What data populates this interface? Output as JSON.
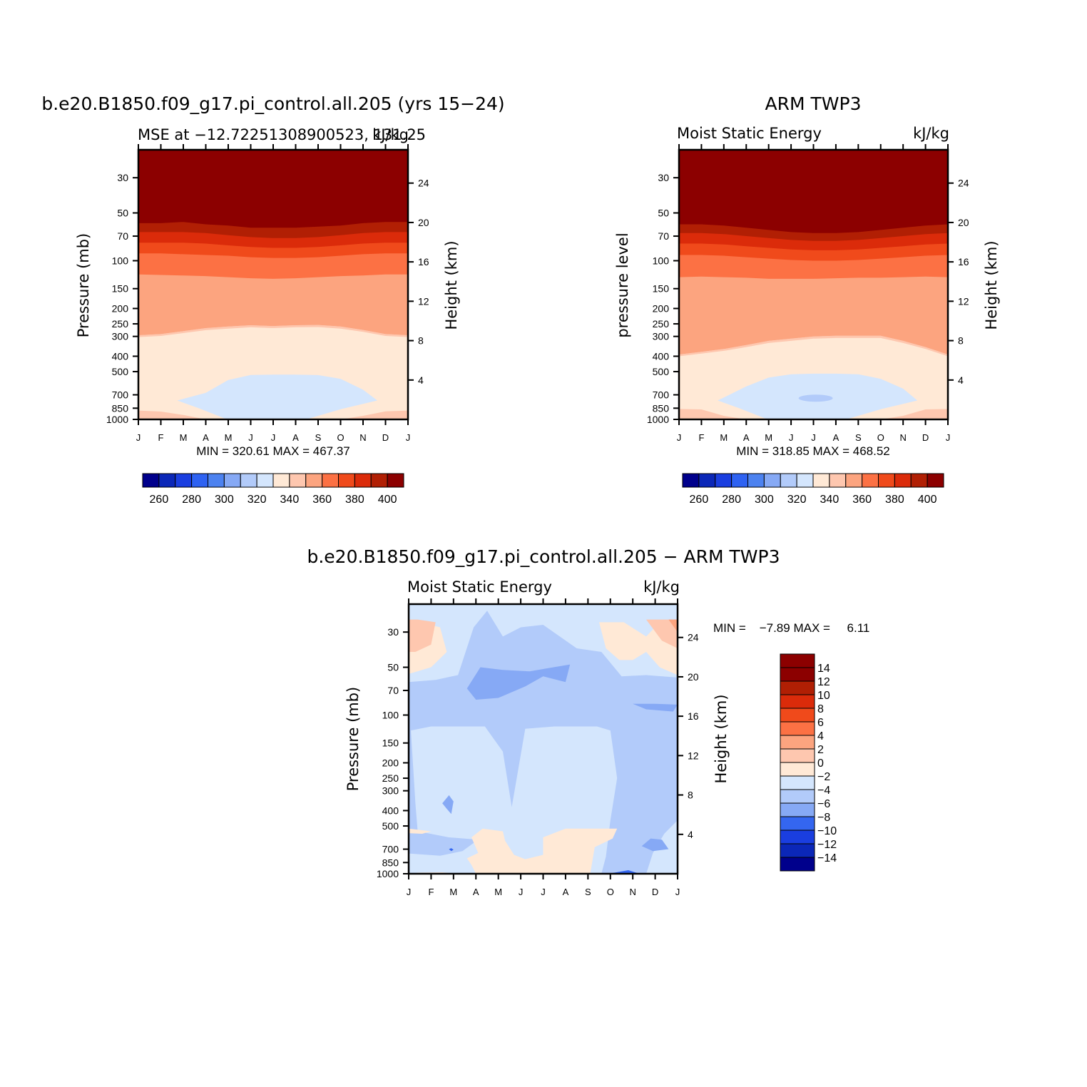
{
  "chart_data": [
    {
      "type": "heatmap",
      "title": "b.e20.B1850.f09_g17.pi_control.all.205 (yrs 15−24)",
      "left_subtitle": "MSE at −12.72251308900523, 131.25",
      "right_subtitle": "kJ/kg",
      "ylabel": "Pressure (mb)",
      "ylabel_right": "Height (km)",
      "min_max_label": "MIN = 320.61 MAX = 467.37",
      "min_value": 320.61,
      "max_value": 467.37,
      "x_ticks": [
        "J",
        "F",
        "M",
        "A",
        "M",
        "J",
        "J",
        "A",
        "S",
        "O",
        "N",
        "D",
        "J"
      ],
      "pressure_ticks": [
        30,
        50,
        70,
        100,
        150,
        200,
        250,
        300,
        400,
        500,
        700,
        850,
        1000
      ],
      "height_ticks": [
        4,
        8,
        12,
        16,
        20,
        24
      ],
      "contour_levels_kJkg": [
        260,
        270,
        280,
        290,
        300,
        310,
        320,
        330,
        340,
        350,
        360,
        370,
        380,
        390,
        400
      ],
      "contour_tops_hPa": {
        "390": [
          58,
          58,
          57,
          59,
          60,
          62,
          62,
          62,
          61,
          60,
          58,
          57,
          57
        ],
        "380": [
          66,
          66,
          66,
          67,
          69,
          71,
          72,
          72,
          71,
          69,
          67,
          66,
          66
        ],
        "370": [
          77,
          77,
          77,
          78,
          80,
          82,
          83,
          83,
          82,
          80,
          78,
          77,
          77
        ],
        "360": [
          90,
          90,
          91,
          92,
          93,
          95,
          96,
          96,
          95,
          93,
          91,
          90,
          90
        ],
        "350": [
          122,
          123,
          124,
          125,
          127,
          129,
          130,
          129,
          127,
          125,
          124,
          122,
          122
        ],
        "340": [
          295,
          290,
          278,
          266,
          260,
          255,
          258,
          255,
          254,
          260,
          273,
          290,
          295
        ],
        "330": [
          null,
          null,
          null,
          680,
          565,
          525,
          522,
          522,
          526,
          555,
          650,
          null,
          null
        ],
        "340_lower": [
          880,
          892,
          938,
          1000,
          1000,
          1000,
          1000,
          1000,
          1000,
          1000,
          950,
          890,
          880
        ]
      },
      "colorbar_labels": [
        260,
        280,
        300,
        320,
        340,
        360,
        380,
        400
      ]
    },
    {
      "type": "heatmap",
      "title": "ARM TWP3",
      "left_subtitle": "Moist Static Energy",
      "right_subtitle": "kJ/kg",
      "ylabel": "pressure level",
      "ylabel_right": "Height (km)",
      "min_max_label": "MIN = 318.85 MAX = 468.52",
      "min_value": 318.85,
      "max_value": 468.52,
      "x_ticks": [
        "J",
        "F",
        "M",
        "A",
        "M",
        "J",
        "J",
        "A",
        "S",
        "O",
        "N",
        "D",
        "J"
      ],
      "pressure_ticks": [
        30,
        50,
        70,
        100,
        150,
        200,
        250,
        300,
        400,
        500,
        700,
        850,
        1000
      ],
      "height_ticks": [
        4,
        8,
        12,
        16,
        20,
        24
      ],
      "contour_levels_kJkg": [
        260,
        270,
        280,
        290,
        300,
        310,
        320,
        330,
        340,
        350,
        360,
        370,
        380,
        390,
        400
      ],
      "contour_tops_hPa": {
        "390": [
          59,
          59,
          60,
          62,
          64,
          66,
          67,
          67,
          66,
          64,
          62,
          60,
          59
        ],
        "380": [
          67,
          67,
          68,
          70,
          72,
          74,
          75,
          75,
          74,
          72,
          70,
          68,
          67
        ],
        "370": [
          78,
          78,
          79,
          81,
          83,
          85,
          86,
          86,
          85,
          83,
          81,
          79,
          78
        ],
        "360": [
          92,
          92,
          93,
          95,
          97,
          99,
          100,
          100,
          99,
          97,
          95,
          93,
          92
        ],
        "350": [
          127,
          126,
          127,
          128,
          130,
          130,
          130,
          129,
          128,
          128,
          127,
          126,
          127
        ],
        "340": [
          390,
          375,
          360,
          340,
          320,
          310,
          300,
          297,
          297,
          297,
          320,
          350,
          390
        ],
        "330": [
          null,
          null,
          null,
          620,
          545,
          520,
          515,
          515,
          520,
          555,
          640,
          null,
          null
        ],
        "340_lower": [
          860,
          865,
          950,
          1000,
          1000,
          1000,
          1000,
          1000,
          1000,
          1000,
          950,
          865,
          860
        ]
      },
      "colorbar_labels": [
        260,
        280,
        300,
        320,
        340,
        360,
        380,
        400
      ]
    },
    {
      "type": "heatmap",
      "title": "b.e20.B1850.f09_g17.pi_control.all.205 − ARM TWP3",
      "left_subtitle": "Moist Static Energy",
      "right_subtitle": "kJ/kg",
      "ylabel": "Pressure (mb)",
      "ylabel_right": "Height (km)",
      "min_max_label": "MIN =    −7.89 MAX =     6.11",
      "min_value": -7.89,
      "max_value": 6.11,
      "x_ticks": [
        "J",
        "F",
        "M",
        "A",
        "M",
        "J",
        "J",
        "A",
        "S",
        "O",
        "N",
        "D",
        "J"
      ],
      "pressure_ticks": [
        30,
        50,
        70,
        100,
        150,
        200,
        250,
        300,
        400,
        500,
        700,
        850,
        1000
      ],
      "height_ticks": [
        4,
        8,
        12,
        16,
        20,
        24
      ],
      "contour_levels_kJkg": [
        -14,
        -12,
        -10,
        -8,
        -6,
        -4,
        -2,
        0,
        2,
        4,
        6,
        8,
        10,
        12,
        14
      ],
      "colorbar_labels": [
        "14",
        "12",
        "10",
        "8",
        "6",
        "4",
        "2",
        "0",
        "−2",
        "−4",
        "−6",
        "−8",
        "−10",
        "−12",
        "−14"
      ]
    }
  ],
  "colors": {
    "abs_palette": [
      "#00008c",
      "#0b27b8",
      "#1a3ee0",
      "#2e62f2",
      "#4c82f0",
      "#86a9f5",
      "#b2cbfa",
      "#d4e6fd",
      "#ffe9d6",
      "#fec7af",
      "#fca47f",
      "#fc7144",
      "#f04a1b",
      "#db2b0a",
      "#b11f04",
      "#8c0000"
    ],
    "diff_palette": [
      "#00008c",
      "#0b27b8",
      "#1a3ee0",
      "#3466f0",
      "#86a9f5",
      "#b2cbfa",
      "#d4e6fd",
      "#ffe9d6",
      "#fec7af",
      "#fca47f",
      "#fc7144",
      "#f04a1b",
      "#db2b0a",
      "#b11f04",
      "#8c0000"
    ]
  }
}
